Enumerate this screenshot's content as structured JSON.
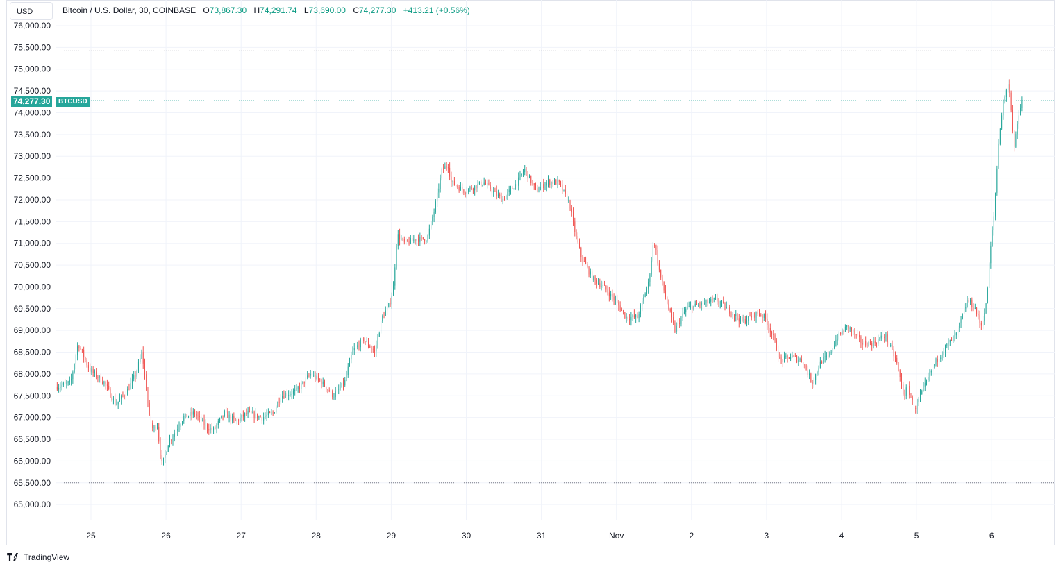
{
  "header": {
    "currency": "USD",
    "symbol_desc": "Bitcoin / U.S. Dollar, 30, COINBASE",
    "open_label": "O",
    "open_value": "73,867.30",
    "high_label": "H",
    "high_value": "74,291.74",
    "low_label": "L",
    "low_value": "73,690.00",
    "close_label": "C",
    "close_value": "74,277.30",
    "change": "+413.21 (+0.56%)"
  },
  "last_price": {
    "value": "74,277.30",
    "symbol": "BTCUSD"
  },
  "brand": "TradingView",
  "colors": {
    "up": "#26a69a",
    "down": "#ef5350",
    "grid": "#f0f3fa",
    "dotted": "#787b86",
    "accent": "#26a69a"
  },
  "chart_data": {
    "type": "candlestick",
    "timeframe": "30",
    "ylim": [
      64700,
      76250
    ],
    "y_ticks": [
      "76,000.00",
      "75,500.00",
      "75,000.00",
      "74,500.00",
      "74,000.00",
      "73,500.00",
      "73,000.00",
      "72,500.00",
      "72,000.00",
      "71,500.00",
      "71,000.00",
      "70,500.00",
      "70,000.00",
      "69,500.00",
      "69,000.00",
      "68,500.00",
      "68,000.00",
      "67,500.00",
      "67,000.00",
      "66,500.00",
      "66,000.00",
      "65,500.00",
      "65,000.00"
    ],
    "x_ticks": [
      {
        "label": "25",
        "day": 1
      },
      {
        "label": "26",
        "day": 2
      },
      {
        "label": "27",
        "day": 3
      },
      {
        "label": "28",
        "day": 4
      },
      {
        "label": "29",
        "day": 5
      },
      {
        "label": "30",
        "day": 6
      },
      {
        "label": "31",
        "day": 7
      },
      {
        "label": "Nov",
        "day": 8
      },
      {
        "label": "2",
        "day": 9
      },
      {
        "label": "3",
        "day": 10
      },
      {
        "label": "4",
        "day": 11
      },
      {
        "label": "5",
        "day": 12
      },
      {
        "label": "6",
        "day": 13
      }
    ],
    "visible_high": 75420,
    "visible_low": 65500,
    "last_close": 74277.3,
    "anchors": [
      [
        0.55,
        67700
      ],
      [
        0.75,
        67800
      ],
      [
        0.85,
        68700
      ],
      [
        1.0,
        68100
      ],
      [
        1.2,
        67800
      ],
      [
        1.35,
        67300
      ],
      [
        1.5,
        67600
      ],
      [
        1.62,
        68000
      ],
      [
        1.7,
        68500
      ],
      [
        1.75,
        67800
      ],
      [
        1.8,
        67000
      ],
      [
        1.85,
        66700
      ],
      [
        1.9,
        66900
      ],
      [
        1.93,
        66400
      ],
      [
        1.97,
        65900
      ],
      [
        2.05,
        66400
      ],
      [
        2.15,
        66700
      ],
      [
        2.25,
        67000
      ],
      [
        2.4,
        67100
      ],
      [
        2.55,
        66800
      ],
      [
        2.65,
        66700
      ],
      [
        2.8,
        67100
      ],
      [
        2.95,
        66900
      ],
      [
        3.1,
        67100
      ],
      [
        3.3,
        67000
      ],
      [
        3.45,
        67100
      ],
      [
        3.55,
        67500
      ],
      [
        3.75,
        67600
      ],
      [
        3.95,
        68000
      ],
      [
        4.1,
        67800
      ],
      [
        4.25,
        67500
      ],
      [
        4.4,
        67800
      ],
      [
        4.5,
        68500
      ],
      [
        4.65,
        68800
      ],
      [
        4.8,
        68500
      ],
      [
        4.9,
        69300
      ],
      [
        5.0,
        69600
      ],
      [
        5.05,
        70000
      ],
      [
        5.1,
        71200
      ],
      [
        5.2,
        71000
      ],
      [
        5.35,
        71100
      ],
      [
        5.5,
        71100
      ],
      [
        5.6,
        71800
      ],
      [
        5.7,
        72700
      ],
      [
        5.78,
        72800
      ],
      [
        5.82,
        72400
      ],
      [
        6.0,
        72200
      ],
      [
        6.25,
        72400
      ],
      [
        6.5,
        72000
      ],
      [
        6.7,
        72400
      ],
      [
        6.8,
        72700
      ],
      [
        6.95,
        72200
      ],
      [
        7.1,
        72400
      ],
      [
        7.25,
        72400
      ],
      [
        7.4,
        71900
      ],
      [
        7.45,
        71400
      ],
      [
        7.55,
        70700
      ],
      [
        7.7,
        70200
      ],
      [
        7.85,
        70000
      ],
      [
        8.0,
        69700
      ],
      [
        8.15,
        69300
      ],
      [
        8.3,
        69300
      ],
      [
        8.45,
        70100
      ],
      [
        8.52,
        71100
      ],
      [
        8.6,
        70300
      ],
      [
        8.7,
        69600
      ],
      [
        8.8,
        69000
      ],
      [
        8.95,
        69500
      ],
      [
        9.15,
        69600
      ],
      [
        9.35,
        69700
      ],
      [
        9.5,
        69500
      ],
      [
        9.7,
        69200
      ],
      [
        9.9,
        69400
      ],
      [
        10.0,
        69300
      ],
      [
        10.12,
        68800
      ],
      [
        10.2,
        68300
      ],
      [
        10.35,
        68400
      ],
      [
        10.5,
        68300
      ],
      [
        10.63,
        67800
      ],
      [
        10.75,
        68300
      ],
      [
        10.85,
        68400
      ],
      [
        10.95,
        68800
      ],
      [
        11.1,
        69100
      ],
      [
        11.3,
        68700
      ],
      [
        11.45,
        68700
      ],
      [
        11.6,
        68900
      ],
      [
        11.75,
        68300
      ],
      [
        11.85,
        67500
      ],
      [
        11.9,
        67700
      ],
      [
        12.0,
        67200
      ],
      [
        12.1,
        67600
      ],
      [
        12.25,
        68200
      ],
      [
        12.4,
        68600
      ],
      [
        12.55,
        68900
      ],
      [
        12.7,
        69700
      ],
      [
        12.8,
        69500
      ],
      [
        12.88,
        69100
      ],
      [
        12.95,
        69600
      ],
      [
        13.0,
        70800
      ],
      [
        13.05,
        71600
      ],
      [
        13.12,
        73500
      ],
      [
        13.18,
        74300
      ],
      [
        13.25,
        74700
      ],
      [
        13.32,
        73200
      ],
      [
        13.38,
        73900
      ],
      [
        13.42,
        74277
      ]
    ]
  }
}
